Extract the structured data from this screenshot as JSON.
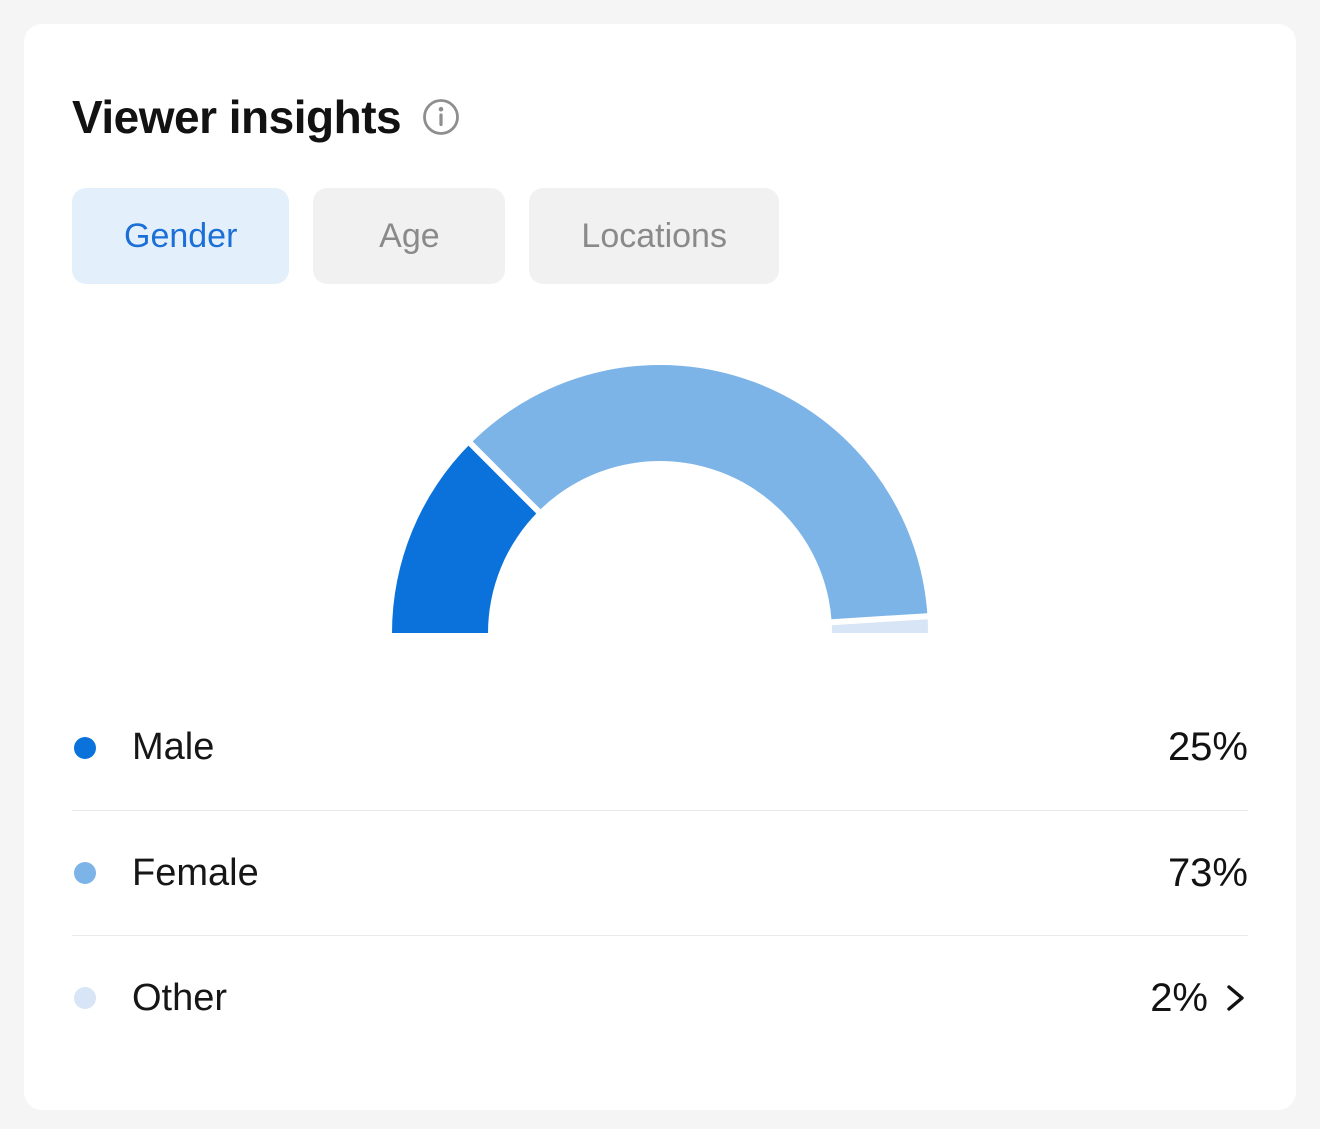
{
  "card": {
    "title": "Viewer insights"
  },
  "tabs": [
    {
      "label": "Gender",
      "active": true
    },
    {
      "label": "Age",
      "active": false
    },
    {
      "label": "Locations",
      "active": false
    }
  ],
  "chart_data": {
    "type": "pie",
    "variant": "half-donut-gauge",
    "title": "Viewer insights — Gender",
    "categories": [
      "Male",
      "Female",
      "Other"
    ],
    "values": [
      25,
      73,
      2
    ],
    "unit": "%",
    "colors": [
      "#0B72DC",
      "#7CB4E8",
      "#D7E5F6"
    ],
    "start_angle_deg": 180,
    "end_angle_deg": 0,
    "legend_position": "bottom"
  },
  "legend": {
    "rows": [
      {
        "label": "Male",
        "value": "25%",
        "color": "#0B72DC",
        "has_chevron": false
      },
      {
        "label": "Female",
        "value": "73%",
        "color": "#7CB4E8",
        "has_chevron": false
      },
      {
        "label": "Other",
        "value": "2%",
        "color": "#D7E5F6",
        "has_chevron": true
      }
    ]
  },
  "colors": {
    "page_bg": "#F5F5F5",
    "card_bg": "#FFFFFF",
    "active_tab_bg": "#E3F0FC",
    "active_tab_text": "#1B6FD6",
    "inactive_tab_bg": "#F1F1F1",
    "inactive_tab_text": "#8A8A8A",
    "divider": "#EAEAEA",
    "info_icon": "#8E8E8E"
  }
}
